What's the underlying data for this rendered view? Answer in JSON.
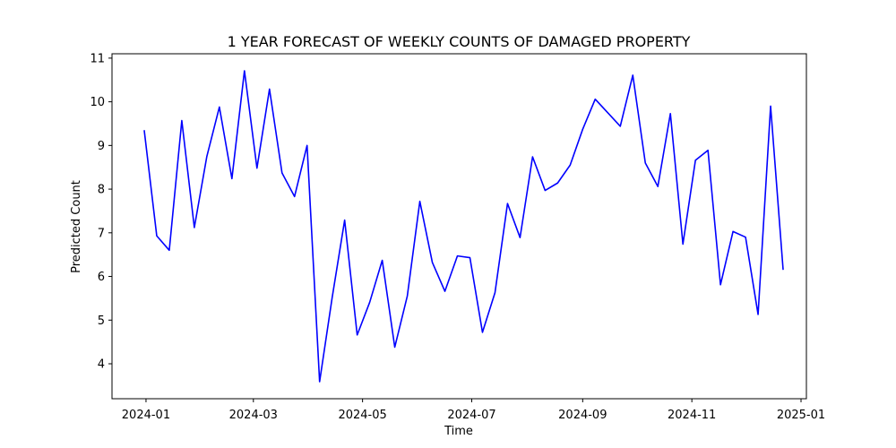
{
  "chart_data": {
    "type": "line",
    "title": "1 YEAR FORECAST OF WEEKLY COUNTS OF DAMAGED PROPERTY",
    "xlabel": "Time",
    "ylabel": "Predicted Count",
    "x_ticks": [
      "2024-01",
      "2024-03",
      "2024-05",
      "2024-07",
      "2024-09",
      "2024-11",
      "2025-01"
    ],
    "y_ticks": [
      4,
      5,
      6,
      7,
      8,
      9,
      10,
      11
    ],
    "xlim": [
      "2023-12-13",
      "2025-01-04"
    ],
    "ylim": [
      3.2,
      11.1
    ],
    "grid": false,
    "line_color": "#0000ff",
    "series": [
      {
        "x": [
          "2023-12-31",
          "2024-01-07",
          "2024-01-14",
          "2024-01-21",
          "2024-01-28",
          "2024-02-04",
          "2024-02-11",
          "2024-02-18",
          "2024-02-25",
          "2024-03-03",
          "2024-03-10",
          "2024-03-17",
          "2024-03-24",
          "2024-03-31",
          "2024-04-07",
          "2024-04-14",
          "2024-04-21",
          "2024-04-28",
          "2024-05-05",
          "2024-05-12",
          "2024-05-19",
          "2024-05-26",
          "2024-06-02",
          "2024-06-09",
          "2024-06-16",
          "2024-06-23",
          "2024-06-30",
          "2024-07-07",
          "2024-07-14",
          "2024-07-21",
          "2024-07-28",
          "2024-08-04",
          "2024-08-11",
          "2024-08-18",
          "2024-08-25",
          "2024-09-01",
          "2024-09-08",
          "2024-09-15",
          "2024-09-22",
          "2024-09-29",
          "2024-10-06",
          "2024-10-13",
          "2024-10-20",
          "2024-10-27",
          "2024-11-03",
          "2024-11-10",
          "2024-11-17",
          "2024-11-24",
          "2024-12-01",
          "2024-12-08",
          "2024-12-15",
          "2024-12-22"
        ],
        "values": [
          9.35,
          6.93,
          6.6,
          9.57,
          7.12,
          8.75,
          9.88,
          8.24,
          10.71,
          8.48,
          10.29,
          8.37,
          7.83,
          9.0,
          3.59,
          5.51,
          7.29,
          4.66,
          5.41,
          6.37,
          4.38,
          5.55,
          7.72,
          6.32,
          5.66,
          6.47,
          6.43,
          4.72,
          5.63,
          7.67,
          6.89,
          8.74,
          7.97,
          8.14,
          8.55,
          9.37,
          10.06,
          9.75,
          9.44,
          10.61,
          8.6,
          8.06,
          9.73,
          6.74,
          8.66,
          8.89,
          5.81,
          7.03,
          6.9,
          5.13,
          9.9,
          6.15
        ]
      }
    ]
  }
}
